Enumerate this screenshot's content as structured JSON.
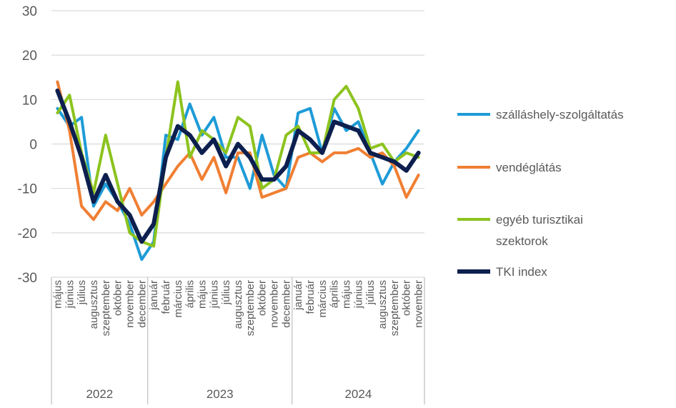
{
  "chart_data": {
    "type": "line",
    "title": "",
    "xlabel": "",
    "ylabel": "",
    "ylim": [
      -30,
      30
    ],
    "yticks": [
      30,
      20,
      10,
      0,
      -10,
      -20,
      -30
    ],
    "grid": true,
    "legend_position": "right",
    "categories": [
      "május",
      "június",
      "július",
      "augusztus",
      "szeptember",
      "október",
      "november",
      "december",
      "január",
      "február",
      "március",
      "április",
      "május",
      "június",
      "július",
      "augusztus",
      "szeptember",
      "október",
      "november",
      "december",
      "január",
      "február",
      "március",
      "április",
      "május",
      "június",
      "július",
      "augusztus",
      "szeptember",
      "október",
      "november"
    ],
    "years": [
      {
        "label": "2022",
        "count": 8
      },
      {
        "label": "2023",
        "count": 12
      },
      {
        "label": "2024",
        "count": 11
      }
    ],
    "series": [
      {
        "name": "szálláshely-szolgáltatás",
        "color": "#1e9bd7",
        "width": 4,
        "values": [
          8,
          4,
          6,
          -14,
          -9,
          -13,
          -18,
          -26,
          -22,
          2,
          1,
          9,
          2,
          6,
          -3,
          -3,
          -10,
          2,
          -7,
          -10,
          7,
          8,
          -2,
          8,
          3,
          5,
          -2,
          -9,
          -4,
          -1,
          3
        ]
      },
      {
        "name": "vendéglátás",
        "color": "#f07f33",
        "width": 4,
        "values": [
          14,
          3,
          -14,
          -17,
          -13,
          -15,
          -10,
          -16,
          -13,
          -9,
          -5,
          -2,
          -8,
          -3,
          -11,
          -2,
          -2,
          -12,
          -11,
          -10,
          -3,
          -2,
          -4,
          -2,
          -2,
          -1,
          -3,
          -2,
          -5,
          -12,
          -7
        ]
      },
      {
        "name": "egyéb turisztikai szektorok",
        "color": "#8cc31e",
        "width": 4,
        "values": [
          7,
          11,
          -2,
          -11,
          2,
          -9,
          -20,
          -22,
          -23,
          -3,
          14,
          -3,
          3,
          1,
          -2,
          6,
          4,
          -10,
          -8,
          2,
          4,
          -2,
          -2,
          10,
          13,
          8,
          -1,
          0,
          -4,
          -2,
          -3
        ]
      },
      {
        "name": "TKI index",
        "color": "#0c1f4e",
        "width": 6,
        "values": [
          12,
          5,
          -3,
          -13,
          -7,
          -13,
          -16,
          -22,
          -18,
          -3,
          4,
          2,
          -2,
          1,
          -5,
          0,
          -3,
          -8,
          -8,
          -5,
          3,
          1,
          -2,
          5,
          4,
          3,
          -2,
          -3,
          -4,
          -6,
          -2
        ]
      }
    ]
  }
}
